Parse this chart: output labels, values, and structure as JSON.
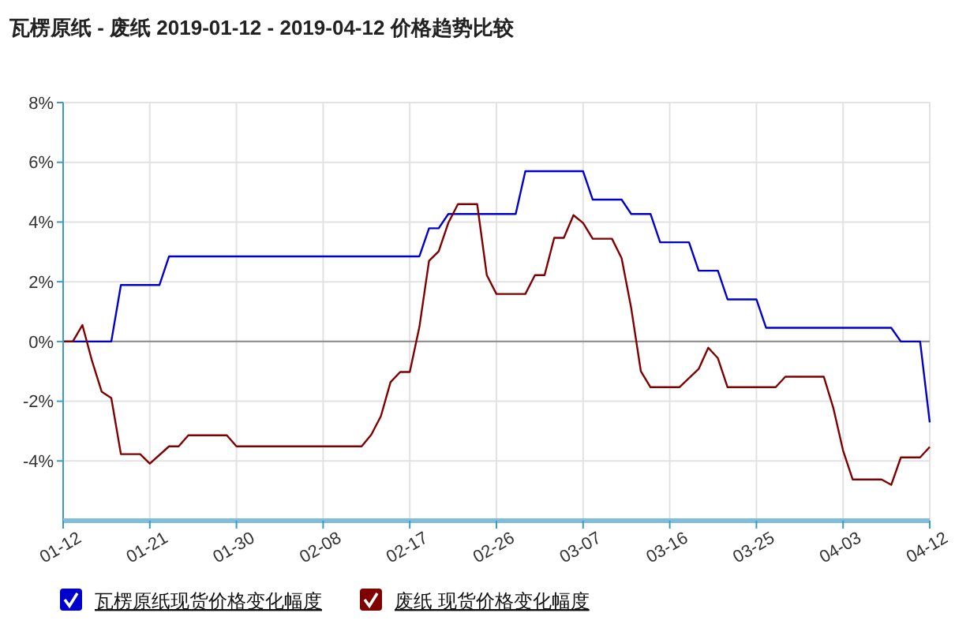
{
  "chart_data": {
    "type": "line",
    "title": "瓦楞原纸 - 废纸 2019-01-12 - 2019-04-12 价格趋势比较",
    "ylim": [
      -6,
      8
    ],
    "yticks": [
      {
        "value": -4,
        "label": "-4%"
      },
      {
        "value": -2,
        "label": "-2%"
      },
      {
        "value": 0,
        "label": "0%"
      },
      {
        "value": 2,
        "label": "2%"
      },
      {
        "value": 4,
        "label": "4%"
      },
      {
        "value": 6,
        "label": "6%"
      },
      {
        "value": 8,
        "label": "8%"
      }
    ],
    "xlim": [
      "--01-12",
      "--04-12"
    ],
    "xticks": [
      {
        "value": "--01-12",
        "label": "01-12"
      },
      {
        "value": "--01-21",
        "label": "01-21"
      },
      {
        "value": "--01-30",
        "label": "01-30"
      },
      {
        "value": "--02-08",
        "label": "02-08"
      },
      {
        "value": "--02-17",
        "label": "02-17"
      },
      {
        "value": "--02-26",
        "label": "02-26"
      },
      {
        "value": "--03-07",
        "label": "03-07"
      },
      {
        "value": "--03-16",
        "label": "03-16"
      },
      {
        "value": "--03-25",
        "label": "03-25"
      },
      {
        "value": "--04-03",
        "label": "04-03"
      },
      {
        "value": "--04-12",
        "label": "04-12"
      }
    ],
    "grid": true,
    "legend": "bottom",
    "marker": "none",
    "line_style": "solid",
    "ref_lines": [
      {
        "axis": "y",
        "value": 0,
        "color": "#888888"
      }
    ],
    "series": [
      {
        "name": "瓦楞原纸现货价格变化幅度",
        "color": "#0000cc",
        "x": [
          "--01-12",
          "--01-17",
          "--01-18",
          "--01-22",
          "--01-23",
          "--02-18",
          "--02-19",
          "--02-20",
          "--02-21",
          "--02-28",
          "--03-01",
          "--03-07",
          "--03-08",
          "--03-11",
          "--03-12",
          "--03-14",
          "--03-15",
          "--03-18",
          "--03-19",
          "--03-21",
          "--03-22",
          "--03-25",
          "--03-26",
          "--04-08",
          "--04-09",
          "--04-11",
          "--04-12"
        ],
        "values": [
          0,
          0,
          1.89,
          1.89,
          2.85,
          2.85,
          3.79,
          3.79,
          4.27,
          4.27,
          5.7,
          5.7,
          4.75,
          4.75,
          4.27,
          4.27,
          3.32,
          3.32,
          2.37,
          2.37,
          1.41,
          1.41,
          0.46,
          0.46,
          0,
          0,
          -2.71
        ]
      },
      {
        "name": "废纸 现货价格变化幅度",
        "color": "#800000",
        "x": [
          "--01-12",
          "--01-13",
          "--01-14",
          "--01-15",
          "--01-16",
          "--01-17",
          "--01-18",
          "--01-20",
          "--01-21",
          "--01-23",
          "--01-24",
          "--01-25",
          "--01-29",
          "--01-30",
          "--02-12",
          "--02-13",
          "--02-14",
          "--02-15",
          "--02-16",
          "--02-17",
          "--02-18",
          "--02-19",
          "--02-20",
          "--02-21",
          "--02-22",
          "--02-24",
          "--02-25",
          "--02-26",
          "--03-01",
          "--03-02",
          "--03-03",
          "--03-04",
          "--03-05",
          "--03-06",
          "--03-07",
          "--03-08",
          "--03-10",
          "--03-11",
          "--03-12",
          "--03-13",
          "--03-14",
          "--03-17",
          "--03-19",
          "--03-20",
          "--03-21",
          "--03-22",
          "--03-27",
          "--03-28",
          "--04-01",
          "--04-02",
          "--04-03",
          "--04-04",
          "--04-07",
          "--04-08",
          "--04-09",
          "--04-11",
          "--04-12"
        ],
        "values": [
          0,
          0,
          0.55,
          -0.65,
          -1.68,
          -1.89,
          -3.77,
          -3.77,
          -4.09,
          -3.51,
          -3.51,
          -3.14,
          -3.14,
          -3.51,
          -3.51,
          -3.12,
          -2.5,
          -1.36,
          -1.02,
          -1.02,
          0.49,
          2.7,
          3.02,
          3.97,
          4.6,
          4.6,
          2.22,
          1.59,
          1.59,
          2.22,
          2.22,
          3.47,
          3.47,
          4.23,
          3.97,
          3.44,
          3.44,
          2.79,
          1.11,
          -1.0,
          -1.53,
          -1.53,
          -0.92,
          -0.21,
          -0.56,
          -1.53,
          -1.53,
          -1.18,
          -1.18,
          -2.24,
          -3.65,
          -4.62,
          -4.62,
          -4.8,
          -3.88,
          -3.88,
          -3.53
        ]
      }
    ]
  }
}
